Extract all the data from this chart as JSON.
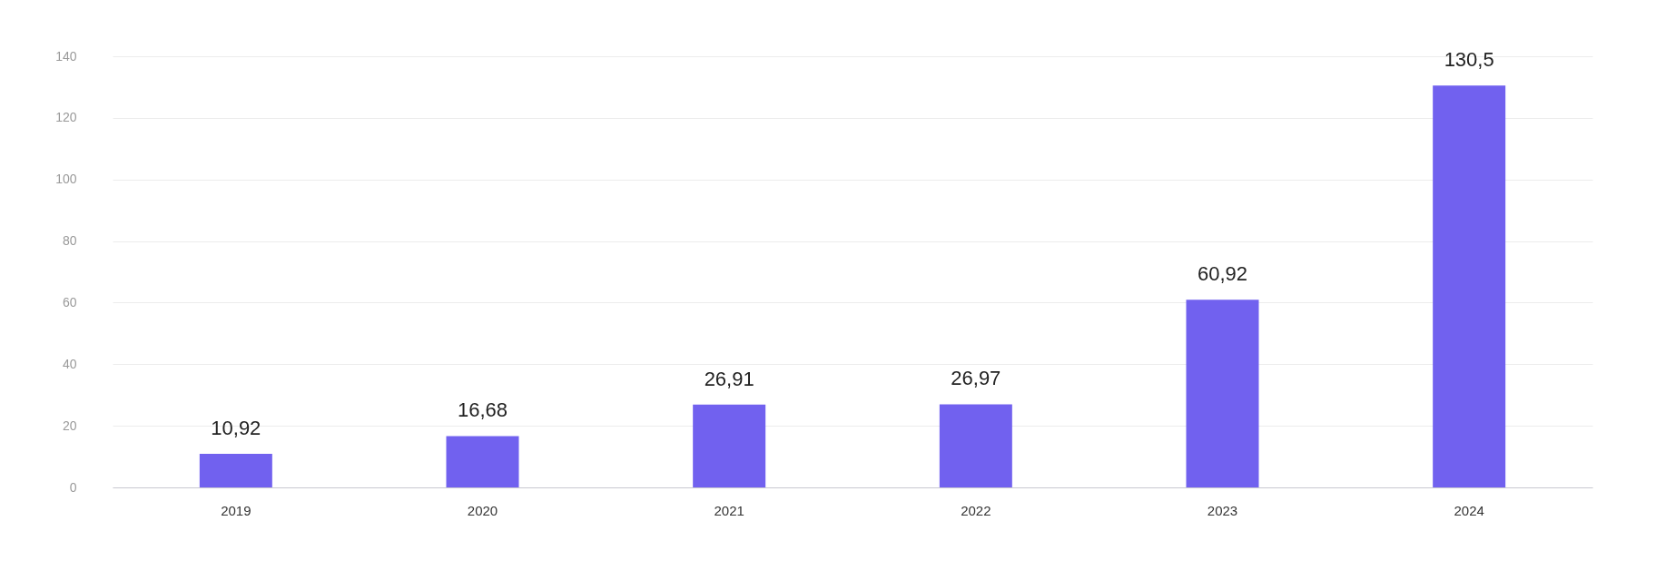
{
  "chart_data": {
    "type": "bar",
    "categories": [
      "2019",
      "2020",
      "2021",
      "2022",
      "2023",
      "2024"
    ],
    "values": [
      10.92,
      16.68,
      26.91,
      26.97,
      60.92,
      130.5
    ],
    "value_labels": [
      "10,92",
      "16,68",
      "26,91",
      "26,97",
      "60,92",
      "130,5"
    ],
    "color": "#7161ef",
    "ylim": [
      0,
      140
    ],
    "yticks": [
      0,
      20,
      40,
      60,
      80,
      100,
      120,
      140
    ],
    "grid": "y"
  }
}
